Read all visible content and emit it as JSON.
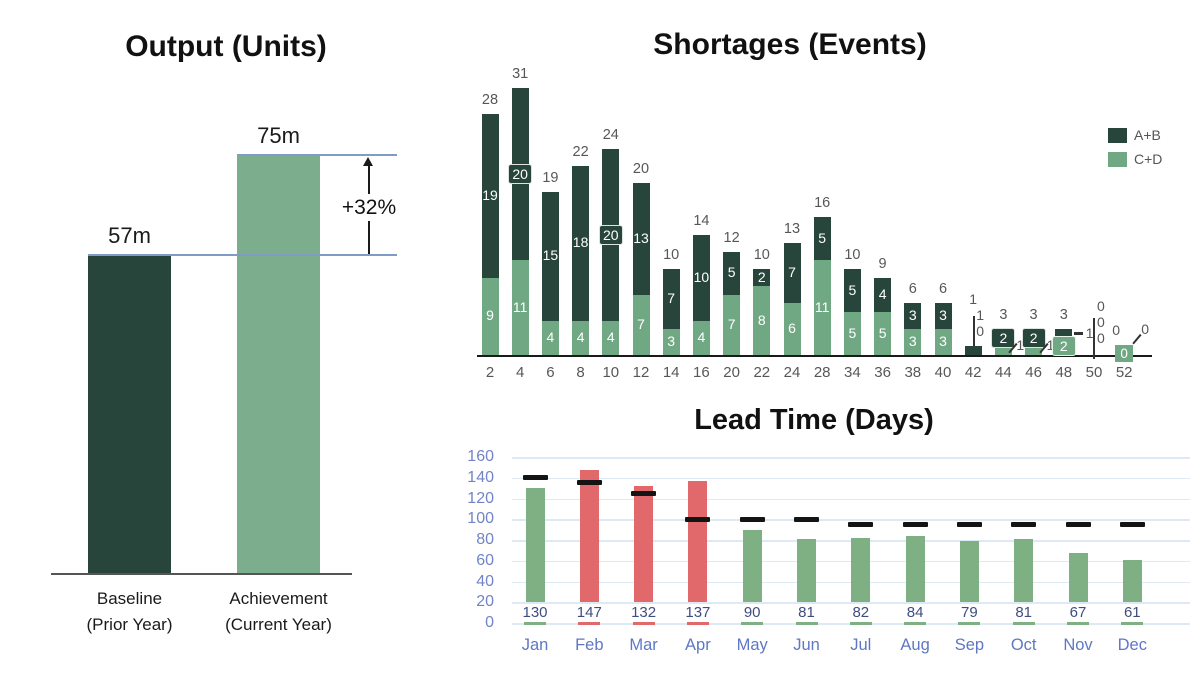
{
  "chart_data": [
    {
      "type": "bar",
      "title": "Output (Units)",
      "categories": [
        [
          "Baseline",
          "(Prior Year)"
        ],
        [
          "Achievement",
          "(Current Year)"
        ]
      ],
      "values": [
        57,
        75
      ],
      "value_labels": [
        "57m",
        "75m"
      ],
      "bar_colors": [
        "#27453a",
        "#7cae8e"
      ],
      "annotation": "+32%",
      "ylabel": "",
      "ylim": [
        0,
        100
      ],
      "grid": false
    },
    {
      "type": "bar-stacked",
      "title": "Shortages (Events)",
      "categories": [
        "2",
        "4",
        "6",
        "8",
        "10",
        "12",
        "14",
        "16",
        "20",
        "22",
        "24",
        "28",
        "34",
        "36",
        "38",
        "40",
        "42",
        "44",
        "46",
        "48",
        "50",
        "52"
      ],
      "series": [
        {
          "name": "A+B",
          "color": "#27453a",
          "values": [
            19,
            20,
            15,
            18,
            20,
            13,
            7,
            10,
            5,
            2,
            7,
            5,
            5,
            4,
            3,
            3,
            1,
            2,
            2,
            1,
            0,
            0
          ]
        },
        {
          "name": "C+D",
          "color": "#71a884",
          "values": [
            9,
            11,
            4,
            4,
            4,
            7,
            3,
            4,
            7,
            8,
            6,
            11,
            5,
            5,
            3,
            3,
            0,
            1,
            1,
            2,
            0,
            0
          ]
        }
      ],
      "totals": [
        28,
        31,
        19,
        22,
        24,
        20,
        10,
        14,
        12,
        10,
        13,
        16,
        10,
        9,
        6,
        6,
        1,
        3,
        3,
        3,
        0,
        0
      ],
      "label_variants": [
        "plain",
        "ab-badge",
        "plain",
        "plain",
        "ab-badge",
        "plain",
        "plain",
        "plain",
        "plain",
        "plain",
        "plain",
        "plain",
        "plain",
        "plain",
        "plain",
        "plain",
        "tiny",
        "cd-slant",
        "cd-slant",
        "ab-dash",
        "zeros-line",
        "zeros-end"
      ],
      "legend_position": "right",
      "ylim": [
        0,
        31
      ],
      "grid": false
    },
    {
      "type": "bar",
      "title": "Lead Time (Days)",
      "categories": [
        "Jan",
        "Feb",
        "Mar",
        "Apr",
        "May",
        "Jun",
        "Jul",
        "Aug",
        "Sep",
        "Oct",
        "Nov",
        "Dec"
      ],
      "values": [
        130,
        147,
        132,
        137,
        90,
        81,
        82,
        84,
        79,
        81,
        67,
        61
      ],
      "targets": [
        140,
        135,
        125,
        100,
        100,
        100,
        95,
        95,
        95,
        95,
        95,
        95
      ],
      "y_ticks": [
        0,
        20,
        40,
        60,
        80,
        100,
        120,
        140,
        160
      ],
      "ylim": [
        0,
        160
      ],
      "grid": true,
      "colors": {
        "bar_ok": "#7fb083",
        "bar_over": "#e2696b",
        "target_marker": "#141414",
        "value_label": "#3f4c7e",
        "month_label": "#5f77c4",
        "y_tick_label": "#7284c7",
        "gridline": "#dde9f4"
      }
    }
  ],
  "misc_colors": {
    "total_label_gray": "#575757",
    "reference_line_blue": "#7f9cc4",
    "axis_dark": "#1a1a1a"
  }
}
